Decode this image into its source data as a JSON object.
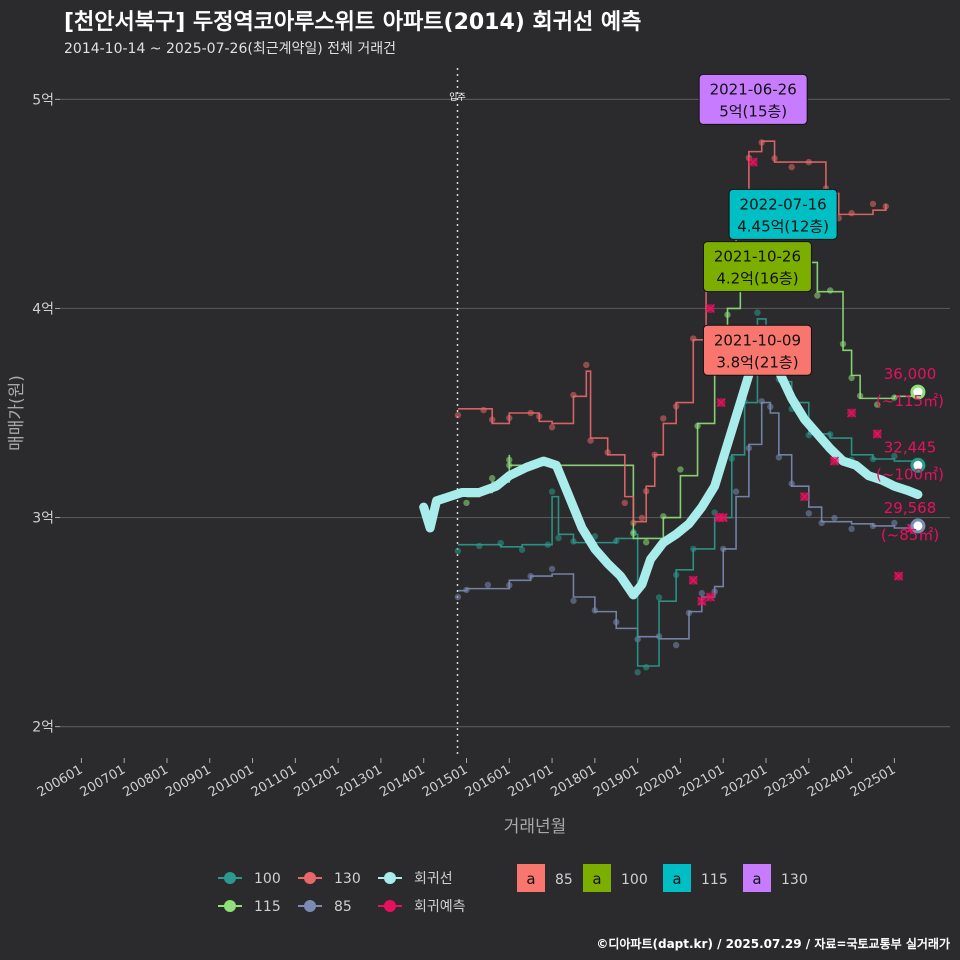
{
  "title": "[천안서북구] 두정역코아루스위트 아파트(2014) 회귀선 예측",
  "subtitle": "2014-10-14 ~ 2025-07-26(최근계약일) 전체 거래건",
  "credit": "©디아파트(dapt.kr) / 2025.07.29 / 자료=국토교통부 실거래가",
  "colors": {
    "bg": "#2b2b2d",
    "grid": "#555555",
    "s85": "#7b8bb3",
    "s100": "#2b9a8e",
    "s115": "#8fe07a",
    "s130": "#e8686a",
    "regression": "#a8ecec",
    "forecast": "#e8105e",
    "lab85": "#f8766d",
    "lab100": "#7cae00",
    "lab115": "#00bfc4",
    "lab130": "#c77cff"
  },
  "chart_data": {
    "type": "line",
    "title": "[천안서북구] 두정역코아루스위트 아파트(2014) 회귀선 예측",
    "xlabel": "거래년월",
    "ylabel": "매매가(원)",
    "ylim": [
      1.85,
      5.15
    ],
    "xlim": [
      2005.5,
      2026.3
    ],
    "y_ticks": [
      {
        "v": 2,
        "label": "2억"
      },
      {
        "v": 3,
        "label": "3억"
      },
      {
        "v": 4,
        "label": "4억"
      },
      {
        "v": 5,
        "label": "5억"
      }
    ],
    "x_ticks": [
      {
        "v": 2006,
        "label": "200601"
      },
      {
        "v": 2007,
        "label": "200701"
      },
      {
        "v": 2008,
        "label": "200801"
      },
      {
        "v": 2009,
        "label": "200901"
      },
      {
        "v": 2010,
        "label": "201001"
      },
      {
        "v": 2011,
        "label": "201101"
      },
      {
        "v": 2012,
        "label": "201201"
      },
      {
        "v": 2013,
        "label": "201301"
      },
      {
        "v": 2014,
        "label": "201401"
      },
      {
        "v": 2015,
        "label": "201501"
      },
      {
        "v": 2016,
        "label": "201601"
      },
      {
        "v": 2017,
        "label": "201701"
      },
      {
        "v": 2018,
        "label": "201801"
      },
      {
        "v": 2019,
        "label": "201901"
      },
      {
        "v": 2020,
        "label": "202001"
      },
      {
        "v": 2021,
        "label": "202101"
      },
      {
        "v": 2022,
        "label": "202201"
      },
      {
        "v": 2023,
        "label": "202301"
      },
      {
        "v": 2024,
        "label": "202401"
      },
      {
        "v": 2025,
        "label": "202501"
      }
    ],
    "move_in": {
      "x": 2014.79,
      "label": "입주"
    },
    "series": [
      {
        "name": "85",
        "color": "#7b8bb3",
        "points": [
          [
            2014.8,
            2.65
          ],
          [
            2015.0,
            2.66
          ],
          [
            2015.5,
            2.66
          ],
          [
            2016.0,
            2.7
          ],
          [
            2016.5,
            2.72
          ],
          [
            2017.0,
            2.73
          ],
          [
            2017.5,
            2.62
          ],
          [
            2018.0,
            2.55
          ],
          [
            2018.5,
            2.47
          ],
          [
            2019.0,
            2.43
          ],
          [
            2019.5,
            2.42
          ],
          [
            2019.9,
            2.42
          ],
          [
            2020.2,
            2.55
          ],
          [
            2020.5,
            2.62
          ],
          [
            2020.8,
            2.67
          ],
          [
            2021.0,
            2.85
          ],
          [
            2021.3,
            3.1
          ],
          [
            2021.6,
            3.35
          ],
          [
            2021.9,
            3.55
          ],
          [
            2022.1,
            3.5
          ],
          [
            2022.3,
            3.3
          ],
          [
            2022.6,
            3.15
          ],
          [
            2023.0,
            3.05
          ],
          [
            2023.3,
            2.98
          ],
          [
            2023.6,
            2.98
          ],
          [
            2024.0,
            2.97
          ],
          [
            2024.5,
            2.96
          ],
          [
            2025.0,
            2.95
          ],
          [
            2025.55,
            2.96
          ]
        ]
      },
      {
        "name": "100",
        "color": "#2b9a8e",
        "points": [
          [
            2014.8,
            2.87
          ],
          [
            2015.3,
            2.87
          ],
          [
            2015.8,
            2.86
          ],
          [
            2016.3,
            2.87
          ],
          [
            2016.9,
            2.87
          ],
          [
            2017.0,
            3.1
          ],
          [
            2017.15,
            2.92
          ],
          [
            2017.5,
            2.88
          ],
          [
            2018.0,
            2.88
          ],
          [
            2018.5,
            2.9
          ],
          [
            2018.9,
            2.92
          ],
          [
            2019.0,
            2.29
          ],
          [
            2019.2,
            2.29
          ],
          [
            2019.5,
            2.6
          ],
          [
            2019.9,
            2.75
          ],
          [
            2020.3,
            2.85
          ],
          [
            2020.8,
            3.0
          ],
          [
            2021.2,
            3.3
          ],
          [
            2021.5,
            3.55
          ],
          [
            2021.8,
            3.95
          ],
          [
            2022.0,
            3.85
          ],
          [
            2022.3,
            3.65
          ],
          [
            2022.6,
            3.55
          ],
          [
            2023.0,
            3.4
          ],
          [
            2023.5,
            3.38
          ],
          [
            2024.0,
            3.3
          ],
          [
            2024.5,
            3.28
          ],
          [
            2025.0,
            3.27
          ],
          [
            2025.55,
            3.25
          ]
        ]
      },
      {
        "name": "115",
        "color": "#8fe07a",
        "points": [
          [
            2015.0,
            3.1
          ],
          [
            2015.3,
            3.12
          ],
          [
            2015.6,
            3.17
          ],
          [
            2016.0,
            3.3
          ],
          [
            2016.0,
            3.25
          ],
          [
            2018.9,
            2.9
          ],
          [
            2019.2,
            2.9
          ],
          [
            2019.6,
            3.0
          ],
          [
            2020.0,
            3.2
          ],
          [
            2020.4,
            3.45
          ],
          [
            2020.8,
            3.7
          ],
          [
            2021.1,
            4.0
          ],
          [
            2021.4,
            4.1
          ],
          [
            2021.8,
            4.2
          ],
          [
            2022.0,
            4.22
          ],
          [
            2022.5,
            4.22
          ],
          [
            2022.9,
            4.22
          ],
          [
            2023.2,
            4.08
          ],
          [
            2023.5,
            4.08
          ],
          [
            2023.8,
            3.8
          ],
          [
            2024.0,
            3.68
          ],
          [
            2024.2,
            3.57
          ],
          [
            2024.6,
            3.57
          ],
          [
            2025.0,
            3.58
          ],
          [
            2025.55,
            3.6
          ]
        ]
      },
      {
        "name": "130",
        "color": "#e8686a",
        "points": [
          [
            2014.8,
            3.52
          ],
          [
            2015.4,
            3.52
          ],
          [
            2015.6,
            3.45
          ],
          [
            2016.0,
            3.5
          ],
          [
            2016.5,
            3.5
          ],
          [
            2016.7,
            3.46
          ],
          [
            2017.0,
            3.45
          ],
          [
            2017.5,
            3.58
          ],
          [
            2017.8,
            3.7
          ],
          [
            2017.9,
            3.38
          ],
          [
            2018.3,
            3.3
          ],
          [
            2018.7,
            3.1
          ],
          [
            2018.9,
            2.98
          ],
          [
            2019.1,
            2.98
          ],
          [
            2019.2,
            3.15
          ],
          [
            2019.4,
            3.3
          ],
          [
            2019.6,
            3.45
          ],
          [
            2019.9,
            3.55
          ],
          [
            2020.3,
            3.85
          ],
          [
            2020.6,
            4.1
          ],
          [
            2020.9,
            4.25
          ],
          [
            2021.3,
            4.5
          ],
          [
            2021.6,
            4.75
          ],
          [
            2021.9,
            4.8
          ],
          [
            2022.2,
            4.7
          ],
          [
            2022.6,
            4.7
          ],
          [
            2023.0,
            4.7
          ],
          [
            2023.4,
            4.55
          ],
          [
            2023.7,
            4.45
          ],
          [
            2024.0,
            4.45
          ],
          [
            2024.5,
            4.47
          ],
          [
            2024.8,
            4.5
          ]
        ]
      },
      {
        "name": "회귀선",
        "color": "#a8ecec",
        "points": [
          [
            2014.0,
            3.05
          ],
          [
            2014.15,
            2.95
          ],
          [
            2014.3,
            3.08
          ],
          [
            2014.6,
            3.1
          ],
          [
            2014.9,
            3.12
          ],
          [
            2015.3,
            3.12
          ],
          [
            2015.7,
            3.15
          ],
          [
            2016.0,
            3.2
          ],
          [
            2016.4,
            3.24
          ],
          [
            2016.8,
            3.27
          ],
          [
            2017.1,
            3.25
          ],
          [
            2017.4,
            3.1
          ],
          [
            2017.7,
            2.95
          ],
          [
            2018.0,
            2.85
          ],
          [
            2018.3,
            2.78
          ],
          [
            2018.6,
            2.72
          ],
          [
            2018.9,
            2.63
          ],
          [
            2019.1,
            2.68
          ],
          [
            2019.3,
            2.8
          ],
          [
            2019.6,
            2.88
          ],
          [
            2019.9,
            2.92
          ],
          [
            2020.2,
            2.97
          ],
          [
            2020.5,
            3.05
          ],
          [
            2020.8,
            3.15
          ],
          [
            2021.1,
            3.35
          ],
          [
            2021.4,
            3.55
          ],
          [
            2021.7,
            3.75
          ],
          [
            2021.9,
            3.9
          ],
          [
            2022.1,
            3.85
          ],
          [
            2022.3,
            3.7
          ],
          [
            2022.6,
            3.57
          ],
          [
            2022.9,
            3.47
          ],
          [
            2023.2,
            3.4
          ],
          [
            2023.5,
            3.33
          ],
          [
            2023.8,
            3.27
          ],
          [
            2024.1,
            3.25
          ],
          [
            2024.4,
            3.2
          ],
          [
            2024.7,
            3.18
          ],
          [
            2025.0,
            3.15
          ],
          [
            2025.3,
            3.13
          ],
          [
            2025.55,
            3.11
          ]
        ]
      }
    ],
    "forecast_points": [
      [
        2020.3,
        2.7
      ],
      [
        2020.5,
        2.6
      ],
      [
        2020.7,
        2.62
      ],
      [
        2020.9,
        3.0
      ],
      [
        2021.0,
        3.0
      ],
      [
        2020.95,
        3.55
      ],
      [
        2020.7,
        4.0
      ],
      [
        2021.7,
        4.7
      ],
      [
        2022.9,
        3.1
      ],
      [
        2023.6,
        3.27
      ],
      [
        2024.0,
        3.5
      ],
      [
        2025.1,
        2.72
      ],
      [
        2025.4,
        2.95
      ],
      [
        2024.6,
        3.4
      ]
    ],
    "end_labels": [
      {
        "price": "36,000",
        "area": "(~115㎡)",
        "y": 3.6,
        "color": "#8fe07a"
      },
      {
        "price": "32,445",
        "area": "(~100㎡)",
        "y": 3.25,
        "color": "#2b9a8e"
      },
      {
        "price": "29,568",
        "area": "(~85㎡)",
        "y": 2.96,
        "color": "#7b8bb3"
      }
    ],
    "callouts": [
      {
        "date": "2021-06-26",
        "value": "5억(15층)",
        "x": 2021.7,
        "y": 5.0,
        "fill": "#c77cff"
      },
      {
        "date": "2022-07-16",
        "value": "4.45억(12층)",
        "x": 2022.4,
        "y": 4.45,
        "fill": "#00bfc4"
      },
      {
        "date": "2021-10-26",
        "value": "4.2억(16층)",
        "x": 2021.8,
        "y": 4.2,
        "fill": "#7cae00"
      },
      {
        "date": "2021-10-09",
        "value": "3.8억(21층)",
        "x": 2021.8,
        "y": 3.8,
        "fill": "#f8766d"
      }
    ]
  },
  "legend": {
    "line_items": [
      {
        "label": "100",
        "color": "#2b9a8e"
      },
      {
        "label": "130",
        "color": "#e8686a"
      },
      {
        "label": "회귀선",
        "color": "#a8ecec"
      },
      {
        "label": "115",
        "color": "#8fe07a"
      },
      {
        "label": "85",
        "color": "#7b8bb3"
      },
      {
        "label": "회귀예측",
        "color": "#e8105e"
      }
    ],
    "box_glyph": "a",
    "box_items": [
      {
        "label": "85",
        "color": "#f8766d"
      },
      {
        "label": "100",
        "color": "#7cae00"
      },
      {
        "label": "115",
        "color": "#00bfc4"
      },
      {
        "label": "130",
        "color": "#c77cff"
      }
    ]
  }
}
